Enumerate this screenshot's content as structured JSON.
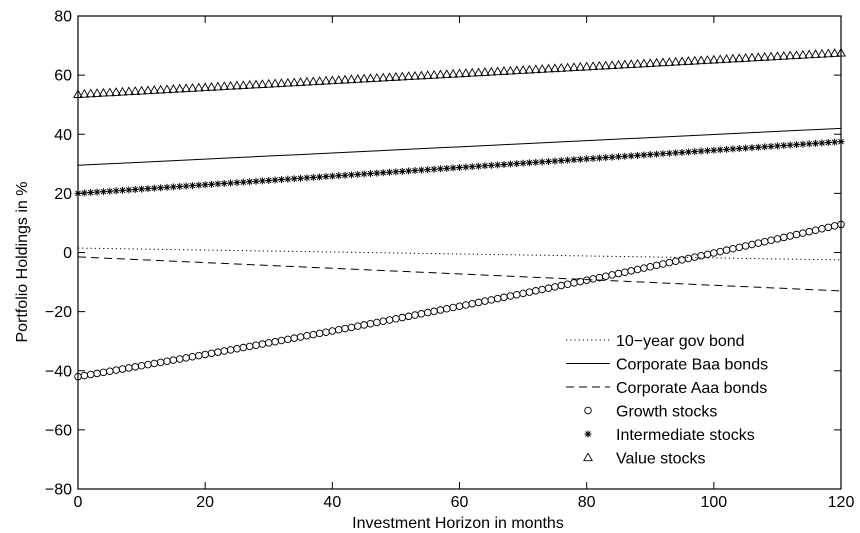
{
  "chart_data": {
    "type": "line",
    "xlabel": "Investment Horizon in months",
    "ylabel": "Portfolio Holdings in %",
    "xlim": [
      0,
      120
    ],
    "ylim": [
      -80,
      80
    ],
    "xticks": [
      0,
      20,
      40,
      60,
      80,
      100,
      120
    ],
    "yticks": [
      -80,
      -60,
      -40,
      -20,
      0,
      20,
      40,
      60,
      80
    ],
    "grid": false,
    "legend_position": "bottom-right",
    "series": [
      {
        "name": "10−year gov bond",
        "style": "dotted",
        "marker": "none",
        "start": [
          0,
          1.5
        ],
        "end": [
          120,
          -2.5
        ]
      },
      {
        "name": "Corporate Baa bonds",
        "style": "solid",
        "marker": "none",
        "start": [
          0,
          29.5
        ],
        "end": [
          120,
          42
        ]
      },
      {
        "name": "Corporate Aaa bonds",
        "style": "dashed",
        "marker": "none",
        "start": [
          0,
          -1.5
        ],
        "end": [
          120,
          -13
        ]
      },
      {
        "name": "Growth stocks",
        "style": "markers",
        "marker": "circle",
        "start": [
          0,
          -42
        ],
        "end": [
          120,
          9.5
        ],
        "curvature": 0.15
      },
      {
        "name": "Intermediate stocks",
        "style": "markers",
        "marker": "star",
        "start": [
          0,
          20
        ],
        "end": [
          120,
          37.5
        ]
      },
      {
        "name": "Value stocks",
        "style": "markers",
        "marker": "triangle",
        "start": [
          0,
          53.5
        ],
        "end": [
          120,
          67.5
        ]
      }
    ]
  }
}
